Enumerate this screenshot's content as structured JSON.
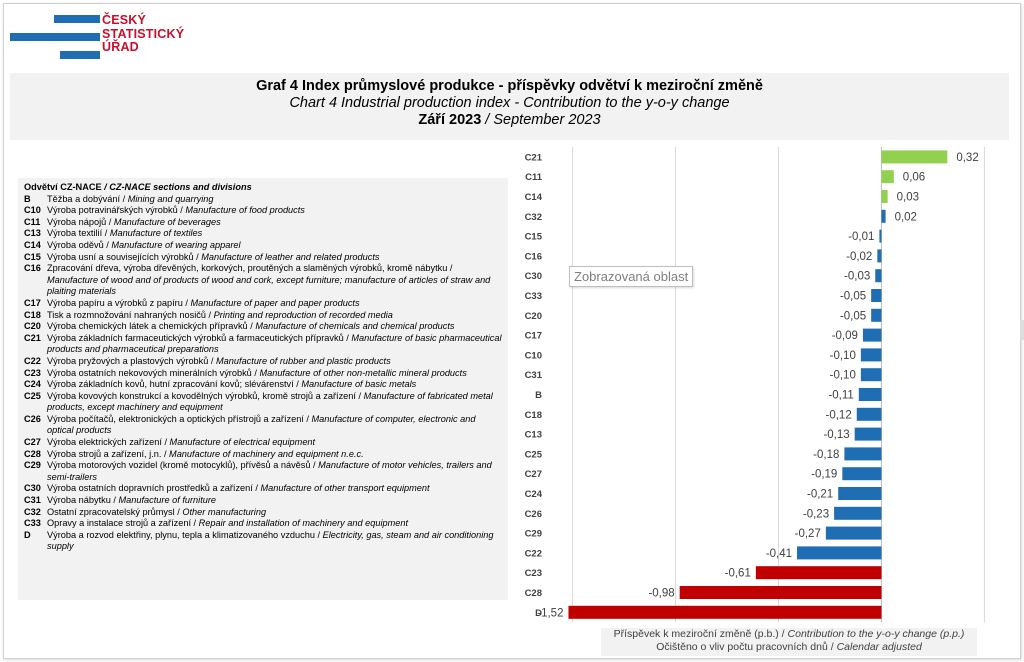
{
  "logo": {
    "line1": "ČESKÝ",
    "line2": "STATISTICKÝ",
    "line3": "ÚŘAD"
  },
  "header": {
    "title_cz": "Graf 4 Index průmyslové  produkce - příspěvky odvětví k meziroční  změně",
    "title_en": "Chart 4 Industrial production index - Contribution to the y-o-y change",
    "period_cz": "Září 2023",
    "period_sep": " / ",
    "period_en": "September 2023"
  },
  "legend": {
    "heading_cz": "Odvětví CZ-NACE",
    "heading_en": " / CZ-NACE sections and divisions",
    "items": [
      {
        "code": "B",
        "cz": "Těžba a dobývání / ",
        "en": "Mining and quarrying"
      },
      {
        "code": "C10",
        "cz": "Výroba potravinářských výrobků / ",
        "en": "Manufacture of food products"
      },
      {
        "code": "C11",
        "cz": "Výroba nápojů / ",
        "en": "Manufacture of beverages"
      },
      {
        "code": "C13",
        "cz": "Výroba textilií / ",
        "en": "Manufacture of textiles"
      },
      {
        "code": "C14",
        "cz": "Výroba oděvů / ",
        "en": "Manufacture of wearing apparel"
      },
      {
        "code": "C15",
        "cz": "Výroba usní a souvisejících výrobků / ",
        "en": "Manufacture of leather and related products"
      },
      {
        "code": "C16",
        "cz": "Zpracování dřeva, výroba dřevěných, korkových, proutěných a slaměných výrobků, kromě nábytku / ",
        "en": "Manufacture of wood and of products of wood and cork, except furniture; manufacture of articles of straw and plaiting materials"
      },
      {
        "code": "C17",
        "cz": "Výroba papíru a výrobků z papíru / ",
        "en": "Manufacture of paper and paper products"
      },
      {
        "code": "C18",
        "cz": "Tisk a rozmnožování nahraných nosičů / ",
        "en": "Printing and reproduction of recorded media"
      },
      {
        "code": "C20",
        "cz": "Výroba chemických látek a chemických přípravků / ",
        "en": "Manufacture of chemicals and chemical products"
      },
      {
        "code": "C21",
        "cz": "Výroba základních farmaceutických výrobků a farmaceutických přípravků / ",
        "en": "Manufacture of basic pharmaceutical products and pharmaceutical preparations"
      },
      {
        "code": "C22",
        "cz": "Výroba pryžových a plastových výrobků / ",
        "en": "Manufacture of rubber and plastic products"
      },
      {
        "code": "C23",
        "cz": "Výroba ostatních nekovových minerálních výrobků / ",
        "en": "Manufacture of other non-metallic mineral products"
      },
      {
        "code": "C24",
        "cz": "Výroba základních kovů, hutní zpracování kovů; slévárenství / ",
        "en": "Manufacture of basic metals"
      },
      {
        "code": "C25",
        "cz": "Výroba kovových konstrukcí a kovodělných výrobků, kromě strojů a zařízení / ",
        "en": "Manufacture of fabricated metal products, except machinery and equipment"
      },
      {
        "code": "C26",
        "cz": "Výroba počítačů, elektronických a optických přístrojů a zařízení / ",
        "en": "Manufacture of computer, electronic and optical products"
      },
      {
        "code": "C27",
        "cz": "Výroba elektrických zařízení / ",
        "en": "Manufacture of electrical equipment"
      },
      {
        "code": "C28",
        "cz": "Výroba strojů a zařízení, j.n. / ",
        "en": "Manufacture of machinery and equipment n.e.c."
      },
      {
        "code": "C29",
        "cz": "Výroba motorových vozidel (kromě motocyklů), přívěsů a návěsů / ",
        "en": "Manufacture of motor vehicles, trailers and semi-trailers"
      },
      {
        "code": "C30",
        "cz": "Výroba ostatních dopravních prostředků a zařízení / ",
        "en": "Manufacture of other transport equipment"
      },
      {
        "code": "C31",
        "cz": "Výroba nábytku / ",
        "en": "Manufacture of furniture"
      },
      {
        "code": "C32",
        "cz": "Ostatní zpracovatelský průmysl / ",
        "en": "Other manufacturing"
      },
      {
        "code": "C33",
        "cz": "Opravy a instalace strojů a zařízení / ",
        "en": "Repair and installation of machinery and equipment"
      },
      {
        "code": "D",
        "cz": "Výroba a rozvod elektřiny, plynu, tepla a klimatizovaného vzduchu / ",
        "en": "Electricity, gas, steam and air conditioning supply"
      }
    ]
  },
  "tooltip": "Zobrazovaná oblast",
  "footer": {
    "line1_cz": "Příspěvek k meziroční změně (p.b.) / ",
    "line1_en": "Contribution to the y-o-y change (p.p.)",
    "line2_cz": "Očištěno o vliv počtu pracovních dnů / ",
    "line2_en": "Calendar adjusted"
  },
  "colors": {
    "top_positive": "#92d050",
    "standard": "#1f6db3",
    "bottom_negative": "#c00000",
    "logo_blue": "#1f6db3",
    "logo_red": "#c8102e"
  },
  "chart_data": {
    "type": "bar",
    "orientation": "horizontal",
    "title": "",
    "xlabel": "",
    "ylabel": "",
    "xlim": [
      -1.6,
      0.6
    ],
    "grid": true,
    "categories": [
      "C21",
      "C11",
      "C14",
      "C32",
      "C15",
      "C16",
      "C30",
      "C33",
      "C20",
      "C17",
      "C10",
      "C31",
      "B",
      "C18",
      "C13",
      "C25",
      "C27",
      "C24",
      "C26",
      "C29",
      "C22",
      "C23",
      "C28",
      "D"
    ],
    "values": [
      0.32,
      0.06,
      0.03,
      0.02,
      -0.01,
      -0.02,
      -0.03,
      -0.05,
      -0.05,
      -0.09,
      -0.1,
      -0.1,
      -0.11,
      -0.12,
      -0.13,
      -0.18,
      -0.19,
      -0.21,
      -0.23,
      -0.27,
      -0.41,
      -0.61,
      -0.98,
      -1.52
    ],
    "labels": [
      "0,32",
      "0,06",
      "0,03",
      "0,02",
      "-0,01",
      "-0,02",
      "-0,03",
      "-0,05",
      "-0,05",
      "-0,09",
      "-0,10",
      "-0,10",
      "-0,11",
      "-0,12",
      "-0,13",
      "-0,18",
      "-0,19",
      "-0,21",
      "-0,23",
      "-0,27",
      "-0,41",
      "-0,61",
      "-0,98",
      "-1,52"
    ],
    "color_groups": [
      "top_positive",
      "top_positive",
      "top_positive",
      "standard",
      "standard",
      "standard",
      "standard",
      "standard",
      "standard",
      "standard",
      "standard",
      "standard",
      "standard",
      "standard",
      "standard",
      "standard",
      "standard",
      "standard",
      "standard",
      "standard",
      "standard",
      "bottom_negative",
      "bottom_negative",
      "bottom_negative"
    ]
  }
}
